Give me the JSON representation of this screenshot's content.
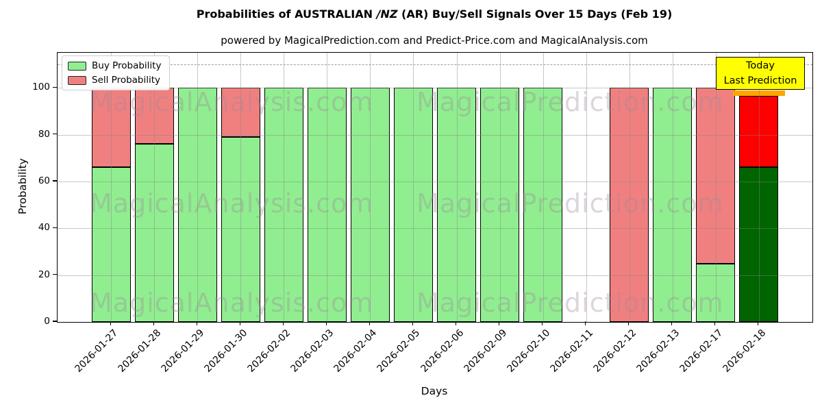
{
  "title": {
    "prefix": "Probabilities of AUSTRALIAN ",
    "italic": "/NZ",
    "suffix": " (AR) Buy/Sell Signals Over 15 Days (Feb 19)"
  },
  "subtitle": "powered by MagicalPrediction.com and Predict-Price.com and MagicalAnalysis.com",
  "legend": {
    "items": [
      {
        "label": "Buy Probability",
        "color": "#90EE90"
      },
      {
        "label": "Sell Probability",
        "color": "#F08080"
      }
    ]
  },
  "annotation": {
    "line1": "Today",
    "line2": "Last Prediction",
    "bg": "#FFFF00"
  },
  "watermarks": {
    "left": "MagicalAnalysis.com",
    "right": "MagicalPrediction.com"
  },
  "colors": {
    "grid": "#b0b0b0",
    "axes": "#000000",
    "background": "#ffffff",
    "watermark": "rgba(160,135,155,0.35)",
    "dashed_guide": "#999999"
  },
  "chart_data": {
    "type": "bar",
    "stacked": true,
    "title": "Probabilities of AUSTRALIAN /NZ (AR) Buy/Sell Signals Over 15 Days (Feb 19)",
    "xlabel": "Days",
    "ylabel": "Probability",
    "ylim": [
      0,
      115
    ],
    "yticks": [
      0,
      20,
      40,
      60,
      80,
      100
    ],
    "dashed_guide_y": 110,
    "grid": true,
    "legend_position": "upper left",
    "categories": [
      "2026-01-27",
      "2026-01-28",
      "2026-01-29",
      "2026-01-30",
      "2026-02-02",
      "2026-02-03",
      "2026-02-04",
      "2026-02-05",
      "2026-02-06",
      "2026-02-09",
      "2026-02-10",
      "2026-02-11",
      "2026-02-12",
      "2026-02-13",
      "2026-02-17",
      "2026-02-18"
    ],
    "series": [
      {
        "name": "Buy Probability",
        "color": "#90EE90",
        "values": [
          66,
          76,
          100,
          79,
          100,
          100,
          100,
          100,
          100,
          100,
          100,
          0,
          0,
          100,
          25,
          66
        ]
      },
      {
        "name": "Sell Probability",
        "color": "#F08080",
        "values": [
          34,
          24,
          0,
          21,
          0,
          0,
          0,
          0,
          0,
          0,
          0,
          0,
          100,
          0,
          75,
          30.5
        ]
      }
    ],
    "today_bar": {
      "category": "2026-02-18",
      "index": 15,
      "buy_color": "#006400",
      "sell_color": "#FF0000",
      "cap_color": "#FFA500",
      "cap_range": [
        96.5,
        99
      ]
    }
  }
}
